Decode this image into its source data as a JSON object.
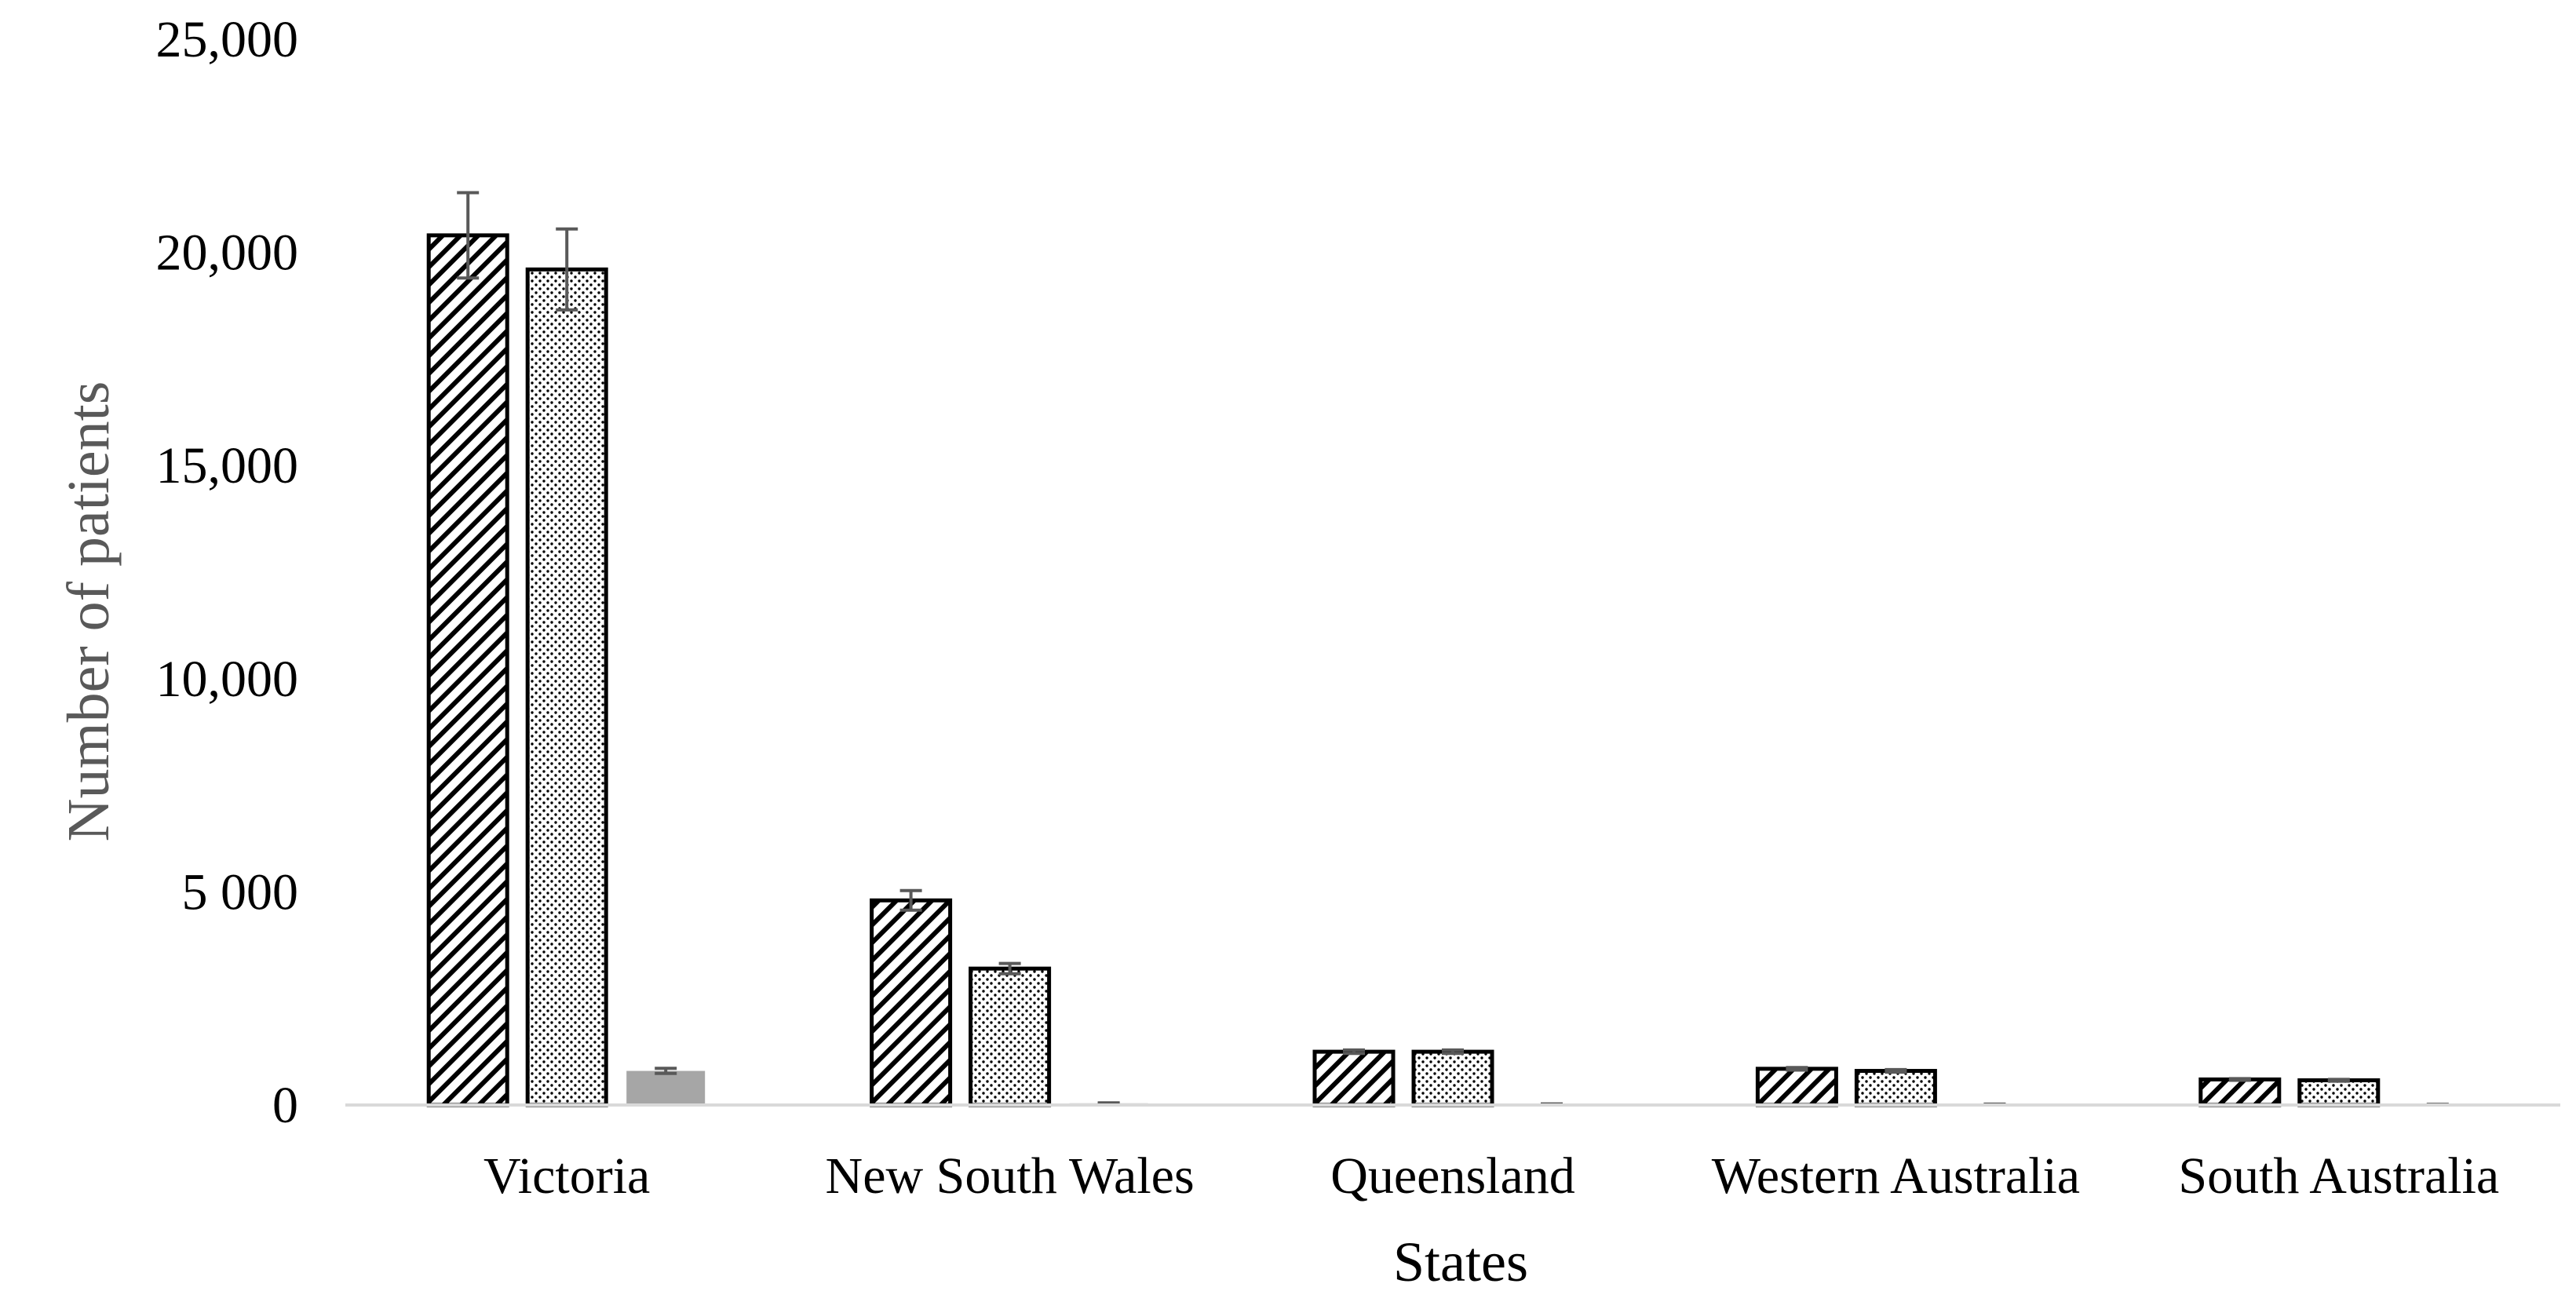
{
  "chart_data": {
    "type": "bar",
    "title": "",
    "xlabel": "States",
    "ylabel": "Number of patients",
    "categories": [
      "Victoria",
      "New South Wales",
      "Queensland",
      "Western Australia",
      "South Australia"
    ],
    "ylim": [
      0,
      25000
    ],
    "yticks": [
      0,
      5000,
      10000,
      15000,
      20000,
      25000
    ],
    "ytick_labels": [
      "0",
      "5 000",
      "10,000",
      "15,000",
      "20,000",
      "25,000"
    ],
    "grid": false,
    "legend": "none",
    "series": [
      {
        "pattern": "diagonal-hatch",
        "color": "#000000",
        "values": [
          20400,
          4800,
          1250,
          850,
          600
        ],
        "errors": [
          1000,
          230,
          40,
          30,
          20
        ]
      },
      {
        "pattern": "dots",
        "color": "#000000",
        "values": [
          19600,
          3200,
          1250,
          800,
          580
        ],
        "errors": [
          950,
          120,
          40,
          30,
          20
        ]
      },
      {
        "pattern": "solid",
        "color": "#a6a6a6",
        "values": [
          800,
          40,
          20,
          15,
          10
        ],
        "errors": [
          60,
          10,
          5,
          5,
          5
        ]
      }
    ]
  }
}
